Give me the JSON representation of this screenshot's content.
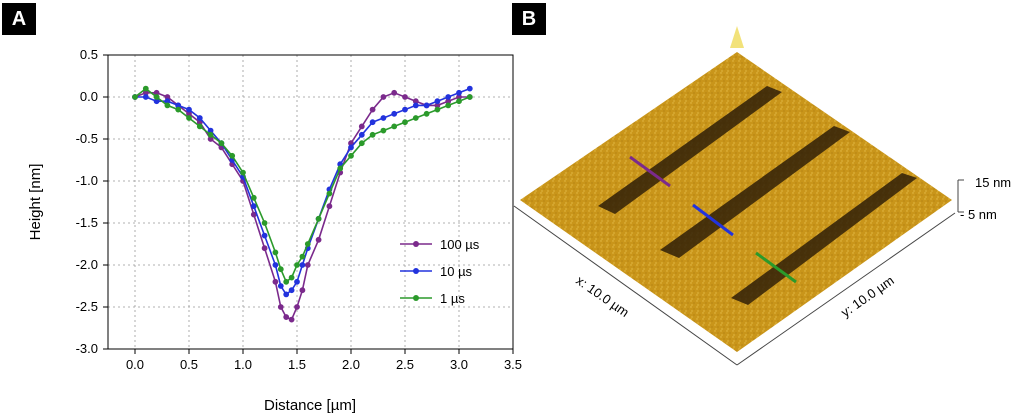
{
  "panels": {
    "a_label": "A",
    "b_label": "B"
  },
  "chart_data": {
    "type": "scatter",
    "xlabel": "Distance [µm]",
    "ylabel": "Height [nm]",
    "xlim": [
      -0.25,
      3.5
    ],
    "ylim": [
      -3.0,
      0.5
    ],
    "xticks": [
      "0.0",
      "0.5",
      "1.0",
      "1.5",
      "2.0",
      "2.5",
      "3.0",
      "3.5"
    ],
    "yticks": [
      "0.5",
      "0.0",
      "-0.5",
      "-1.0",
      "-1.5",
      "-2.0",
      "-2.5",
      "-3.0"
    ],
    "grid": true,
    "legend_position": "right",
    "series": [
      {
        "name": "100 µs",
        "color": "#7b2a8c",
        "x": [
          0.0,
          0.1,
          0.2,
          0.3,
          0.4,
          0.5,
          0.6,
          0.7,
          0.8,
          0.9,
          1.0,
          1.1,
          1.2,
          1.3,
          1.35,
          1.4,
          1.45,
          1.5,
          1.55,
          1.6,
          1.7,
          1.8,
          1.9,
          2.0,
          2.1,
          2.2,
          2.3,
          2.4,
          2.5,
          2.6,
          2.7,
          2.8,
          2.9,
          3.0,
          3.1
        ],
        "y": [
          0.0,
          0.05,
          0.05,
          0.0,
          -0.1,
          -0.2,
          -0.3,
          -0.5,
          -0.6,
          -0.8,
          -1.0,
          -1.4,
          -1.8,
          -2.2,
          -2.5,
          -2.62,
          -2.65,
          -2.5,
          -2.3,
          -2.0,
          -1.7,
          -1.3,
          -0.9,
          -0.55,
          -0.35,
          -0.15,
          0.0,
          0.05,
          0.0,
          -0.05,
          -0.1,
          -0.1,
          -0.05,
          0.0,
          0.0
        ]
      },
      {
        "name": "10 µs",
        "color": "#2233dd",
        "x": [
          0.0,
          0.1,
          0.2,
          0.3,
          0.4,
          0.5,
          0.6,
          0.7,
          0.8,
          0.9,
          1.0,
          1.1,
          1.2,
          1.3,
          1.35,
          1.4,
          1.45,
          1.5,
          1.55,
          1.6,
          1.7,
          1.8,
          1.9,
          2.0,
          2.1,
          2.2,
          2.3,
          2.4,
          2.5,
          2.6,
          2.7,
          2.8,
          2.9,
          3.0,
          3.1
        ],
        "y": [
          0.0,
          0.0,
          -0.05,
          -0.05,
          -0.1,
          -0.15,
          -0.25,
          -0.4,
          -0.55,
          -0.75,
          -0.95,
          -1.3,
          -1.65,
          -2.0,
          -2.25,
          -2.35,
          -2.3,
          -2.2,
          -2.0,
          -1.8,
          -1.45,
          -1.1,
          -0.8,
          -0.6,
          -0.45,
          -0.3,
          -0.25,
          -0.2,
          -0.15,
          -0.1,
          -0.1,
          -0.05,
          0.0,
          0.05,
          0.1
        ]
      },
      {
        "name": "1 µs",
        "color": "#2b9a2b",
        "x": [
          0.0,
          0.1,
          0.2,
          0.3,
          0.4,
          0.5,
          0.6,
          0.7,
          0.8,
          0.9,
          1.0,
          1.1,
          1.2,
          1.3,
          1.35,
          1.4,
          1.45,
          1.5,
          1.55,
          1.6,
          1.7,
          1.8,
          1.9,
          2.0,
          2.1,
          2.2,
          2.3,
          2.4,
          2.5,
          2.6,
          2.7,
          2.8,
          2.9,
          3.0,
          3.1
        ],
        "y": [
          0.0,
          0.1,
          0.0,
          -0.1,
          -0.15,
          -0.25,
          -0.35,
          -0.45,
          -0.55,
          -0.7,
          -0.9,
          -1.2,
          -1.5,
          -1.85,
          -2.05,
          -2.2,
          -2.15,
          -2.0,
          -1.9,
          -1.75,
          -1.45,
          -1.15,
          -0.85,
          -0.7,
          -0.55,
          -0.45,
          -0.4,
          -0.35,
          -0.3,
          -0.25,
          -0.2,
          -0.15,
          -0.1,
          -0.05,
          0.0
        ]
      }
    ]
  },
  "surface": {
    "x_label": "x: 10.0 µm",
    "y_label": "y: 10.0 µm",
    "z_top": "15 nm",
    "z_bottom": "- 5 nm",
    "base_color": "#c79418",
    "line_colors": [
      "#7b2a8c",
      "#2233dd",
      "#2b9a2b"
    ]
  }
}
